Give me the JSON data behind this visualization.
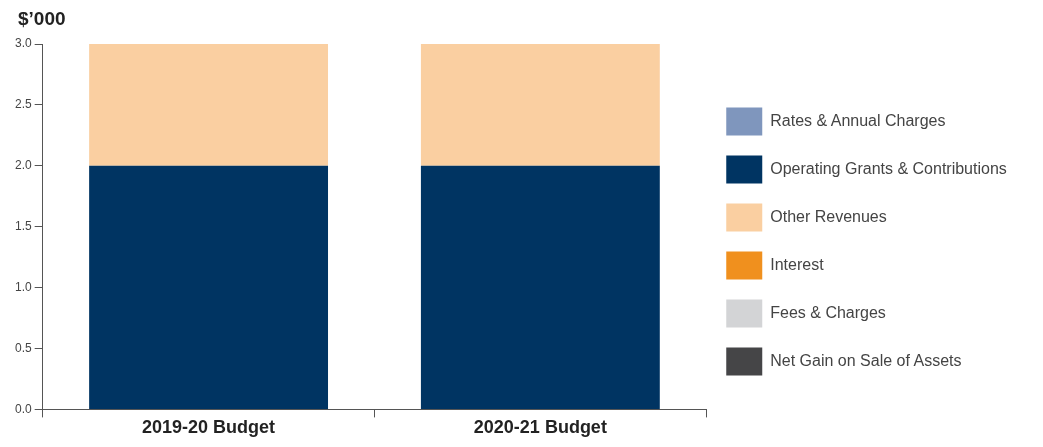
{
  "chart_data": {
    "type": "bar",
    "stacked": true,
    "ylabel": "$’000",
    "categories": [
      "2019-20 Budget",
      "2020-21 Budget"
    ],
    "series": [
      {
        "name": "Rates & Annual Charges",
        "color": "#7f96bd",
        "values": [
          0,
          0
        ]
      },
      {
        "name": "Operating Grants & Contributions",
        "color": "#003462",
        "values": [
          2.0,
          2.0
        ]
      },
      {
        "name": "Other Revenues",
        "color": "#facfa1",
        "values": [
          1.0,
          1.0
        ]
      },
      {
        "name": "Interest",
        "color": "#f0901e",
        "values": [
          0,
          0
        ]
      },
      {
        "name": "Fees & Charges",
        "color": "#d3d4d6",
        "values": [
          0,
          0
        ]
      },
      {
        "name": "Net Gain on Sale of Assets",
        "color": "#454547",
        "values": [
          0,
          0
        ]
      }
    ],
    "ylim": [
      0,
      3
    ],
    "yticks": [
      {
        "value": 0,
        "label": "0.0"
      },
      {
        "value": 0.5,
        "label": "0.5"
      },
      {
        "value": 1,
        "label": "1.0"
      },
      {
        "value": 1.5,
        "label": "1.5"
      },
      {
        "value": 2,
        "label": "2.0"
      },
      {
        "value": 2.5,
        "label": "2.5"
      },
      {
        "value": 3,
        "label": "3.0"
      }
    ],
    "grid": false,
    "legend": "right"
  }
}
